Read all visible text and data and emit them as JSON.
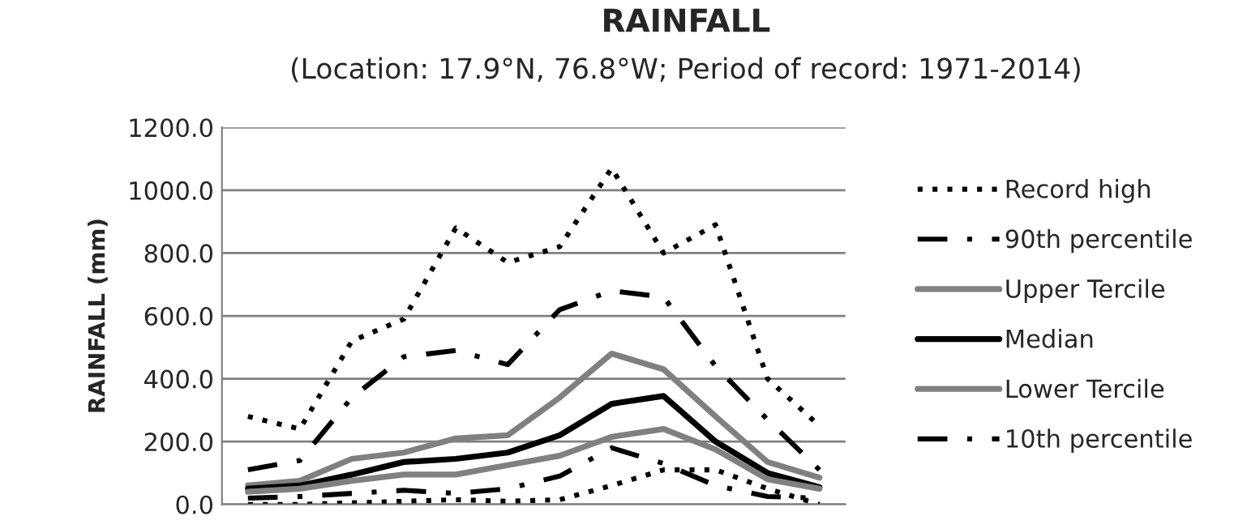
{
  "chart_data": {
    "type": "line",
    "title": "RAINFALL",
    "subtitle": "(Location: 17.9°N, 76.8°W; Period of record: 1971-2014)",
    "ylabel": "RAINFALL (mm)",
    "categories": [
      null,
      null,
      null,
      null,
      null,
      null,
      null,
      null,
      null,
      null,
      null,
      null
    ],
    "series": [
      {
        "name": "Record high",
        "color": "#000000",
        "line_style": "dotted",
        "values": [
          280,
          240,
          520,
          590,
          880,
          770,
          820,
          1070,
          800,
          890,
          400,
          250
        ]
      },
      {
        "name": "90th percentile",
        "color": "#000000",
        "line_style": "dashdot",
        "values": [
          110,
          140,
          340,
          470,
          490,
          445,
          620,
          680,
          660,
          440,
          270,
          110
        ]
      },
      {
        "name": "Upper Tercile",
        "color": "#808080",
        "line_style": "solid",
        "values": [
          60,
          75,
          145,
          165,
          210,
          220,
          340,
          480,
          430,
          280,
          135,
          85
        ]
      },
      {
        "name": "Median",
        "color": "#000000",
        "line_style": "solid",
        "values": [
          50,
          60,
          95,
          135,
          145,
          165,
          220,
          320,
          345,
          200,
          100,
          55
        ]
      },
      {
        "name": "Lower Tercile",
        "color": "#808080",
        "line_style": "solid",
        "values": [
          40,
          50,
          75,
          95,
          95,
          125,
          155,
          215,
          240,
          175,
          80,
          50
        ]
      },
      {
        "name": "10th percentile",
        "color": "#000000",
        "line_style": "dashdot",
        "values": [
          20,
          25,
          35,
          45,
          35,
          50,
          90,
          180,
          130,
          60,
          25,
          20
        ]
      },
      {
        "color": "#000000",
        "line_style": "dotted",
        "values": [
          0,
          0,
          5,
          10,
          15,
          10,
          15,
          60,
          110,
          110,
          50,
          0
        ]
      }
    ],
    "ylim": [
      0,
      1200
    ],
    "yticks": [
      {
        "value": 0,
        "label": "0.0"
      },
      {
        "value": 200,
        "label": "200.0"
      },
      {
        "value": 400,
        "label": "400.0"
      },
      {
        "value": 600,
        "label": "600.0"
      },
      {
        "value": 800,
        "label": "800.0"
      },
      {
        "value": 1000,
        "label": "1000.0"
      },
      {
        "value": 1200,
        "label": "1200.0"
      }
    ],
    "grid": "y",
    "legend": "right",
    "tick_labels": "y"
  }
}
